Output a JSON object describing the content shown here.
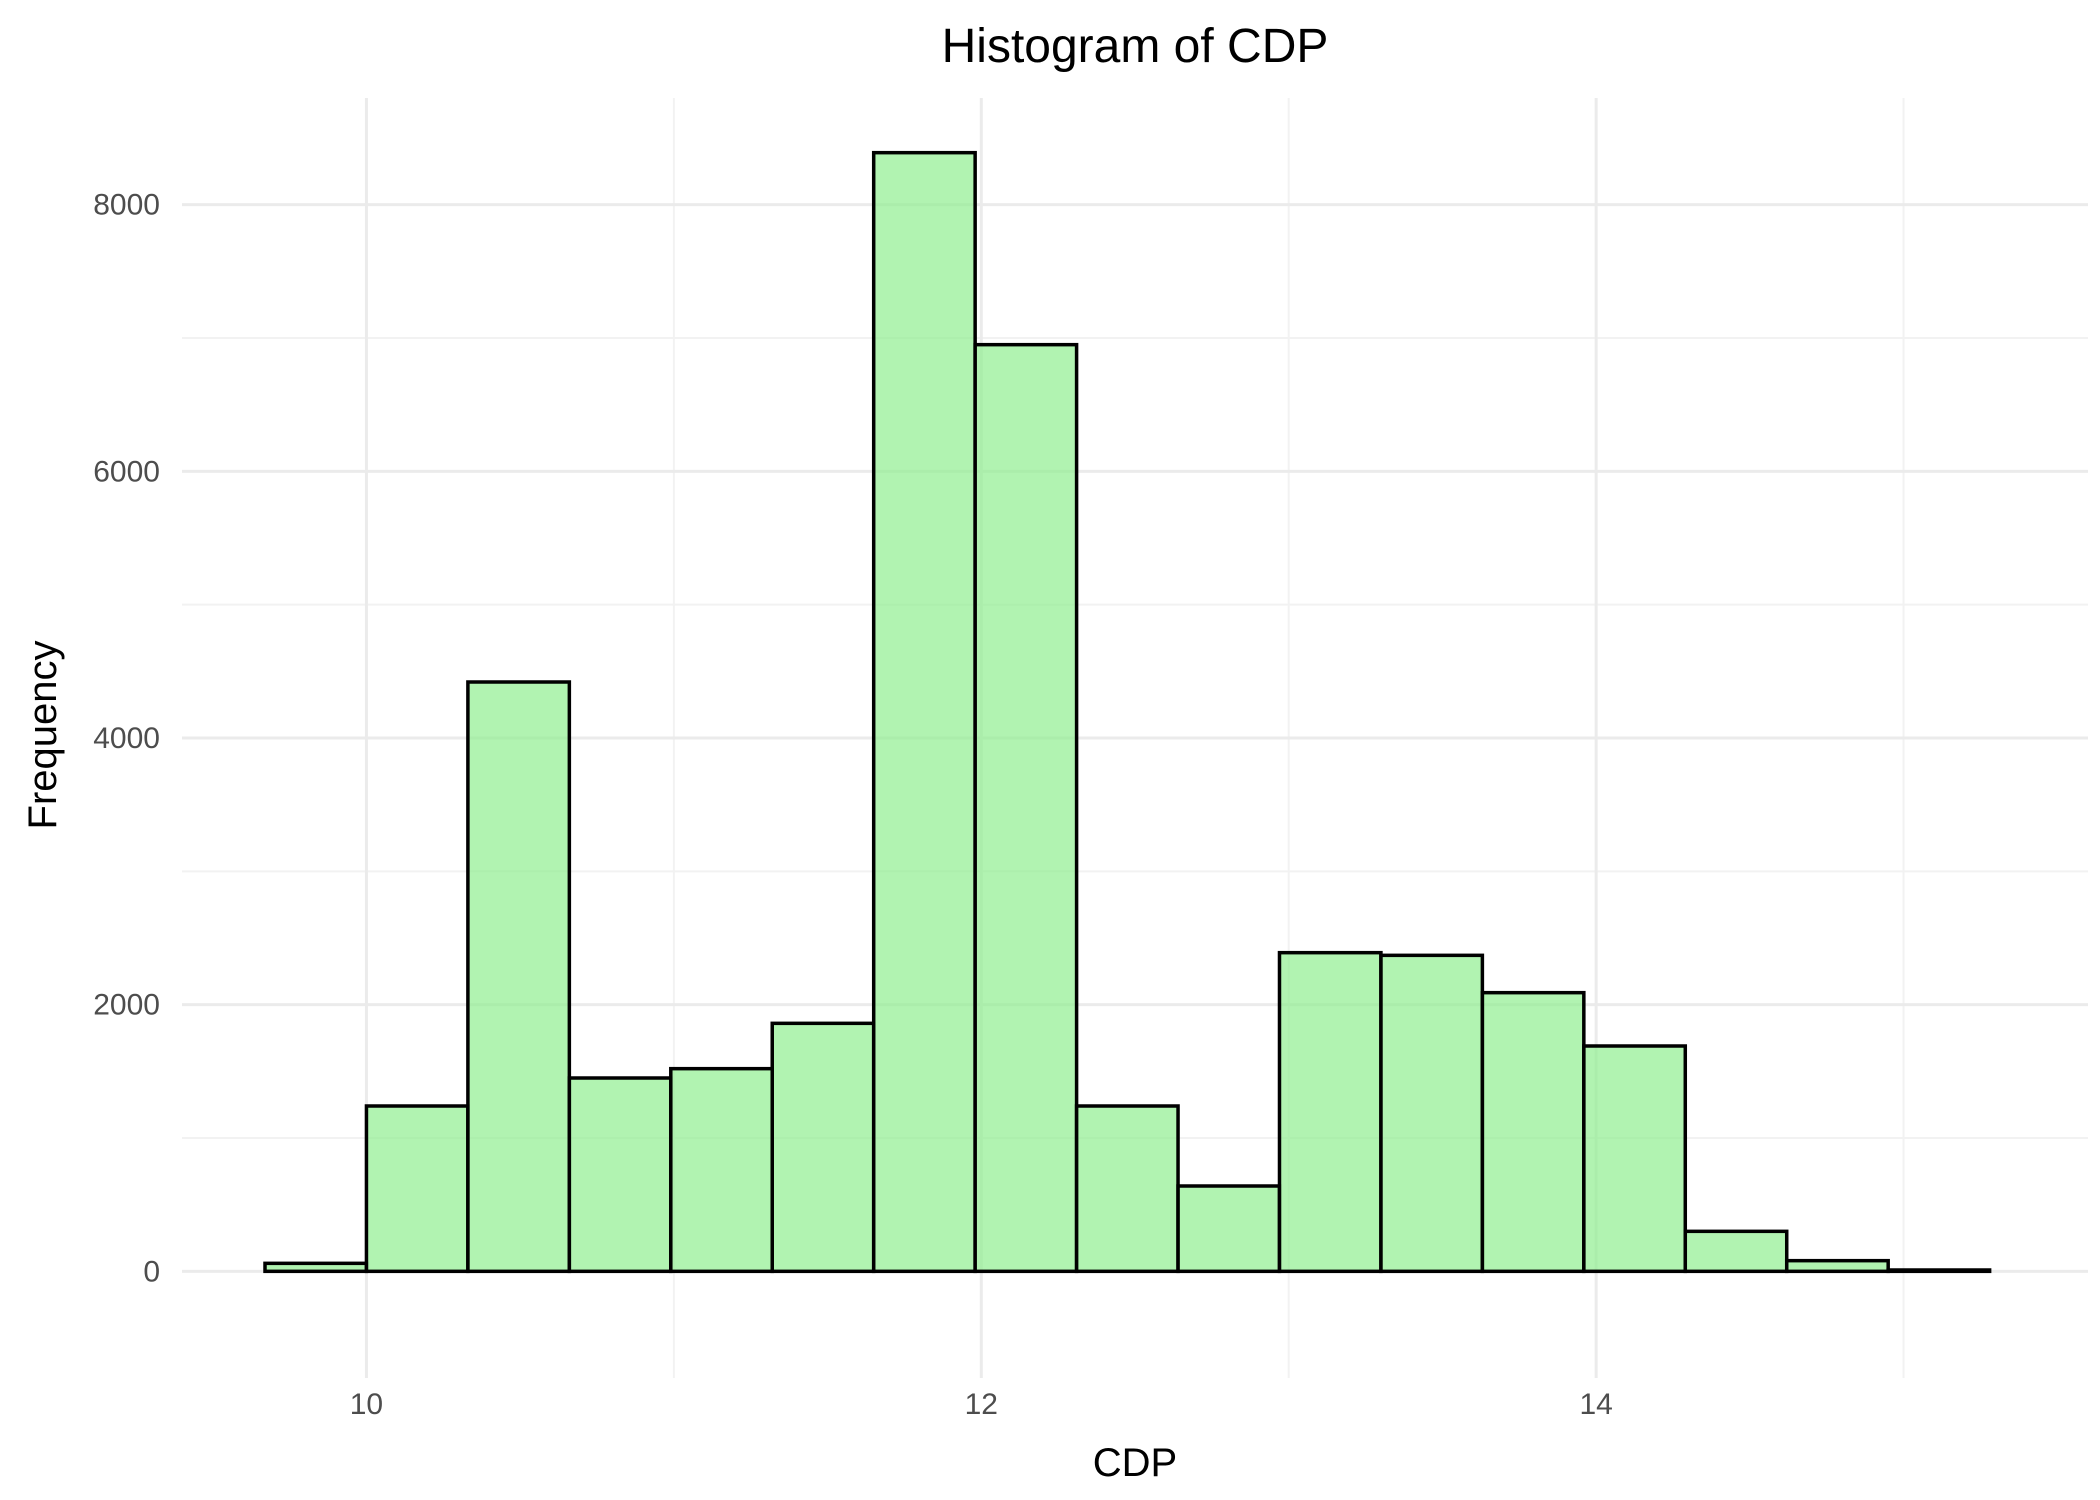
{
  "chart_data": {
    "type": "bar",
    "title": "Histogram of CDP",
    "xlabel": "CDP",
    "ylabel": "Frequency",
    "xlim": [
      9.4,
      15.6
    ],
    "ylim": [
      -800,
      8800
    ],
    "x_ticks": [
      10,
      12,
      14
    ],
    "x_minor_ticks": [
      11,
      13,
      15
    ],
    "y_ticks": [
      0,
      2000,
      4000,
      6000,
      8000
    ],
    "y_minor_ticks": [
      1000,
      3000,
      5000,
      7000
    ],
    "bin_width": 0.33,
    "bin_edges": [
      9.67,
      10.0,
      10.33,
      10.66,
      10.99,
      11.32,
      11.65,
      11.98,
      12.31,
      12.64,
      12.97,
      13.3,
      13.63,
      13.96,
      14.29,
      14.62,
      14.95,
      15.28
    ],
    "values": [
      60,
      1240,
      4420,
      1450,
      1520,
      1860,
      8390,
      6950,
      1240,
      640,
      2390,
      2370,
      2090,
      1690,
      300,
      80,
      10
    ],
    "grid": true,
    "legend": "none",
    "colors": {
      "bar_fill": "#90ee90",
      "bar_outline": "#000000",
      "grid_major": "#ebebeb",
      "grid_minor": "#f2f2f2",
      "tick_text": "#4d4d4d"
    }
  }
}
